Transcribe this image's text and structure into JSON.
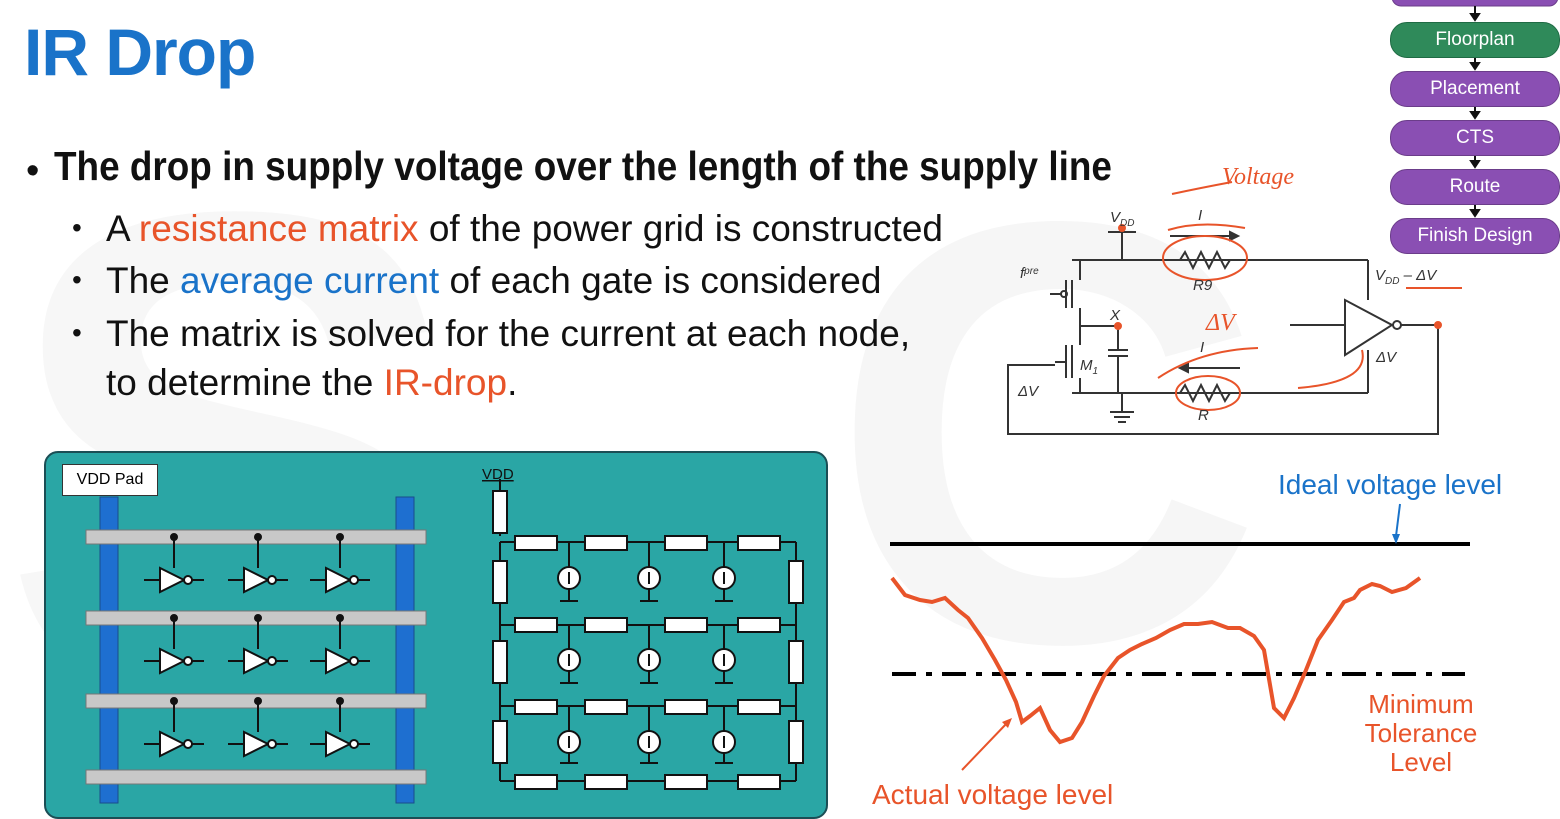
{
  "title": "IR Drop",
  "bullets": {
    "main": "The drop in supply voltage over the length of the supply line",
    "sub1_a": "A ",
    "sub1_hl": "resistance matrix",
    "sub1_b": " of the power grid is constructed",
    "sub2_a": "The ",
    "sub2_hl": "average current",
    "sub2_b": " of each gate is considered",
    "sub3_line1": "The matrix is solved for the current at each node,",
    "sub3_line2_a": "to determine the ",
    "sub3_hl": "IR-drop",
    "sub3_line2_b": "."
  },
  "flow": {
    "steps": [
      "Floorplan",
      "Placement",
      "CTS",
      "Route",
      "Finish Design"
    ],
    "active": "Floorplan"
  },
  "circuit": {
    "vdd": "V",
    "vdd_sub": "DD",
    "i_top": "I",
    "r_top": "R9",
    "fpre": "f",
    "fpre_sub": "pre",
    "x": "X",
    "m1": "M",
    "m1_sub": "1",
    "out": "V",
    "out_sub": "DD",
    "out_rest": " – ΔV",
    "i_bot": "I",
    "r_bot": "R",
    "dv_left": "ΔV",
    "dv_right": "ΔV",
    "hw_voltage": "Voltage",
    "hw_dv": "ΔV"
  },
  "panel": {
    "vdd_pad": "VDD Pad",
    "vdd": "VDD"
  },
  "graph": {
    "ideal": "Ideal voltage level",
    "actual": "Actual voltage level",
    "min_1": "Minimum",
    "min_2": "Tolerance",
    "min_3": "Level"
  },
  "colors": {
    "title_blue": "#1a73c9",
    "orange": "#e8542a",
    "panel_teal": "#2aa6a5",
    "flow_purple": "#8a4fb3",
    "flow_green": "#2f8a5a"
  }
}
